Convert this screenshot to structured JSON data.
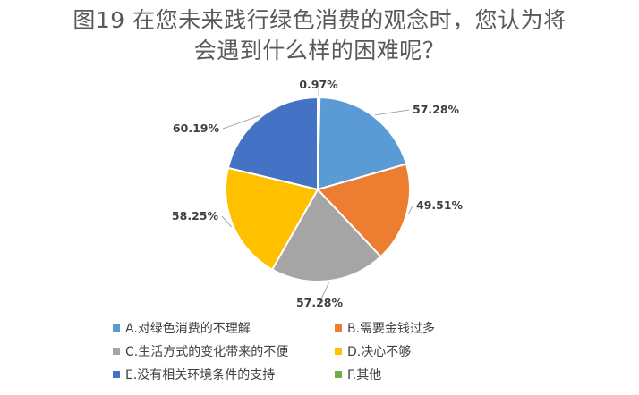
{
  "chart_data": {
    "type": "pie",
    "title": [
      "图19 在您未来践行绿色消费的观念时，您认为将",
      "会遇到什么样的困难呢？"
    ],
    "slices": [
      {
        "name": "F.其他",
        "value": 0.97,
        "label": "0.97%",
        "color": "#70AD47"
      },
      {
        "name": "A.对绿色消费的不理解",
        "value": 57.28,
        "label": "57.28%",
        "color": "#5B9BD5"
      },
      {
        "name": "B.需要金钱过多",
        "value": 49.51,
        "label": "49.51%",
        "color": "#ED7D31"
      },
      {
        "name": "C.生活方式的变化带来的不便",
        "value": 57.28,
        "label": "57.28%",
        "color": "#A5A5A5"
      },
      {
        "name": "D.决心不够",
        "value": 58.25,
        "label": "58.25%",
        "color": "#FFC000"
      },
      {
        "name": "E.没有相关环境条件的支持",
        "value": 60.19,
        "label": "60.19%",
        "color": "#4472C4"
      }
    ],
    "legend": [
      {
        "label": "A.对绿色消费的不理解",
        "color": "#5B9BD5"
      },
      {
        "label": "B.需要金钱过多",
        "color": "#ED7D31"
      },
      {
        "label": "C.生活方式的变化带来的不便",
        "color": "#A5A5A5"
      },
      {
        "label": "D.决心不够",
        "color": "#FFC000"
      },
      {
        "label": "E.没有相关环境条件的支持",
        "color": "#4472C4"
      },
      {
        "label": "F.其他",
        "color": "#70AD47"
      }
    ],
    "legend_position": "bottom"
  }
}
